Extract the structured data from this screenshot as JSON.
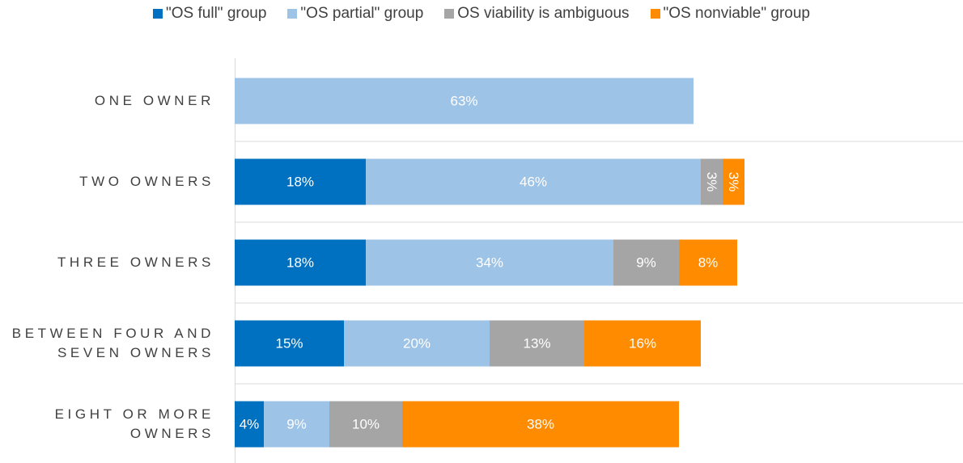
{
  "chart_data": {
    "type": "stacked_barh",
    "categories": [
      "ONE OWNER",
      "TWO OWNERS",
      "THREE OWNERS",
      "BETWEEN FOUR AND SEVEN OWNERS",
      "EIGHT OR MORE OWNERS"
    ],
    "series": [
      {
        "name": "\"OS full\" group",
        "color": "#0070c0",
        "values": [
          null,
          18,
          18,
          15,
          4
        ],
        "value_labels": [
          null,
          "18%",
          "18%",
          "15%",
          "4%"
        ]
      },
      {
        "name": "\"OS partial\" group",
        "color": "#9dc3e6",
        "values": [
          63,
          46,
          34,
          20,
          9
        ],
        "value_labels": [
          "63%",
          "46%",
          "34%",
          "20%",
          "9%"
        ]
      },
      {
        "name": "OS viability is ambiguous",
        "color": "#a5a5a5",
        "values": [
          null,
          3,
          9,
          13,
          10
        ],
        "value_labels": [
          null,
          "3%",
          "9%",
          "13%",
          "10%"
        ]
      },
      {
        "name": "\"OS nonviable\" group",
        "color": "#ff8b00",
        "values": [
          null,
          3,
          8,
          16,
          38
        ],
        "value_labels": [
          null,
          "3%",
          "8%",
          "16%",
          "38%"
        ]
      }
    ],
    "xlim": [
      0,
      100
    ],
    "legend": "top"
  }
}
